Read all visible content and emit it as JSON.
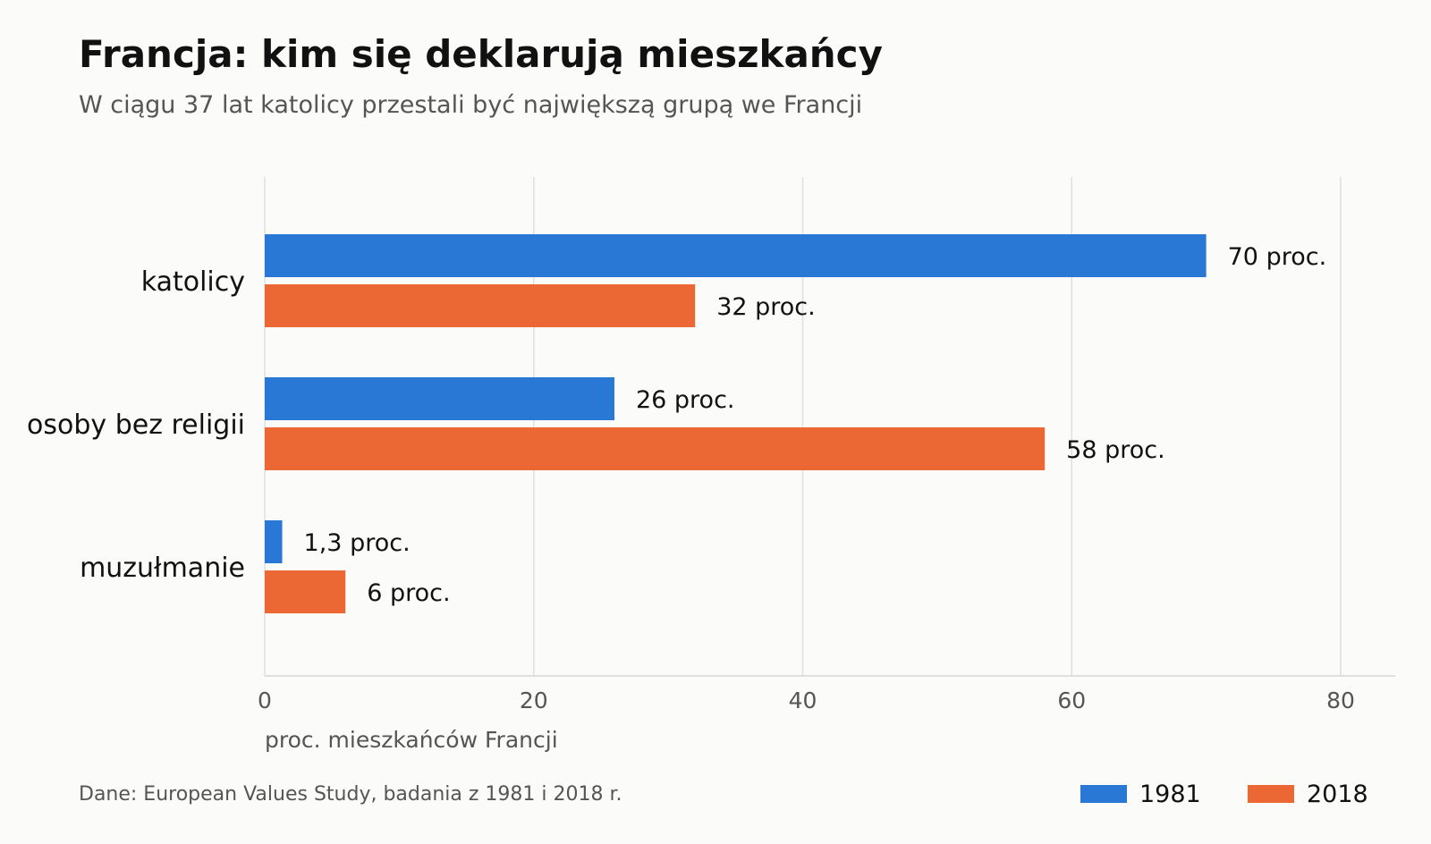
{
  "chart_data": {
    "type": "bar",
    "orientation": "horizontal",
    "title": "Francja: kim się deklarują mieszkańcy",
    "subtitle": "W ciągu 37 lat katolicy przestali być największą grupą we Francji",
    "xlabel": "proc. mieszkańców Francji",
    "ylabel": "",
    "categories": [
      "katolicy",
      "osoby bez religii",
      "muzułmanie"
    ],
    "series": [
      {
        "name": "1981",
        "color": "#2a78d6",
        "values": [
          70,
          26,
          1.3
        ],
        "labels": [
          "70 proc.",
          "26 proc.",
          "1,3 proc."
        ]
      },
      {
        "name": "2018",
        "color": "#eb6834",
        "values": [
          32,
          58,
          6
        ],
        "labels": [
          "32 proc.",
          "58 proc.",
          "6 proc."
        ]
      }
    ],
    "xlim": [
      0,
      84
    ],
    "xticks": [
      0,
      20,
      40,
      60,
      80
    ],
    "xtick_labels": [
      "0",
      "20",
      "40",
      "60",
      "80"
    ],
    "grid": "vertical",
    "legend_position": "bottom-right",
    "source": "Dane: European Values Study, badania z 1981 i 2018 r."
  }
}
